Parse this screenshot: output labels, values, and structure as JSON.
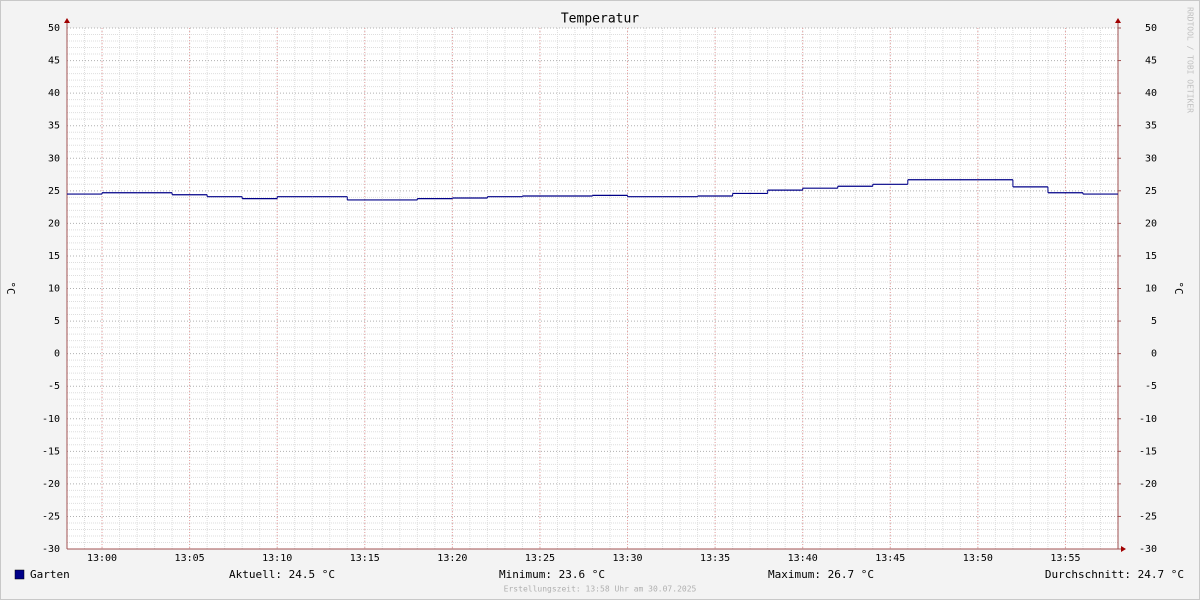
{
  "chart_data": {
    "type": "step-line",
    "title": "Temperatur",
    "ylabel": "°C",
    "y2label": "°C",
    "x": [
      "13:00",
      "13:02",
      "13:04",
      "13:06",
      "13:08",
      "13:10",
      "13:12",
      "13:14",
      "13:16",
      "13:18",
      "13:20",
      "13:22",
      "13:24",
      "13:26",
      "13:28",
      "13:30",
      "13:32",
      "13:34",
      "13:36",
      "13:38",
      "13:40",
      "13:42",
      "13:44",
      "13:46",
      "13:48",
      "13:50",
      "13:52",
      "13:54",
      "13:56",
      "13:58"
    ],
    "series": [
      {
        "name": "Garten",
        "color": "#000088",
        "values": [
          24.5,
          24.7,
          24.7,
          24.4,
          24.1,
          23.8,
          24.1,
          24.1,
          23.6,
          23.6,
          23.8,
          23.9,
          24.1,
          24.2,
          24.2,
          24.3,
          24.1,
          24.1,
          24.2,
          24.6,
          25.1,
          25.4,
          25.7,
          26.0,
          26.7,
          26.7,
          26.7,
          25.6,
          24.7,
          24.5
        ]
      }
    ],
    "xlim": [
      "12:58",
      "13:58"
    ],
    "xticks": [
      "13:00",
      "13:05",
      "13:10",
      "13:15",
      "13:20",
      "13:25",
      "13:30",
      "13:35",
      "13:40",
      "13:45",
      "13:50",
      "13:55"
    ],
    "ylim": [
      -30,
      50
    ],
    "yticks": [
      -30,
      -25,
      -20,
      -15,
      -10,
      -5,
      0,
      5,
      10,
      15,
      20,
      25,
      30,
      35,
      40,
      45,
      50
    ],
    "y2lim": [
      -30,
      50
    ],
    "y2ticks": [
      -30,
      -25,
      -20,
      -15,
      -10,
      -5,
      0,
      5,
      10,
      15,
      20,
      25,
      30,
      35,
      40,
      45,
      50
    ],
    "grid": true,
    "stats": [
      "Aktuell: 24.5 °C",
      "Minimum: 23.6 °C",
      "Maximum: 26.7 °C",
      "Durchschnitt: 24.7 °C"
    ],
    "footer": "Erstellungszeit: 13:58 Uhr am 30.07.2025",
    "watermark": "RRDTOOL / TOBI OETIKER"
  }
}
